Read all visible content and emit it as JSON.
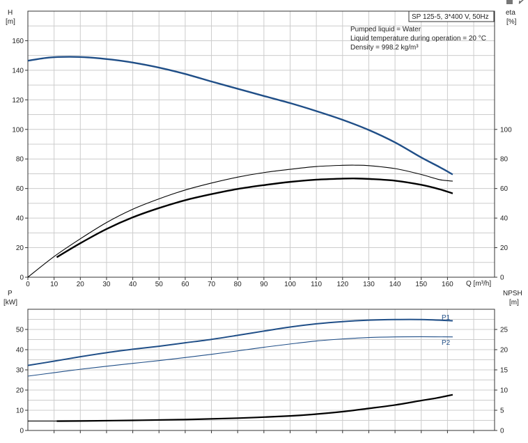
{
  "window_icons": [
    "square-icon",
    "expand-icon"
  ],
  "pump_box_label": "SP 125-5, 3*400 V, 50Hz",
  "info_lines": [
    "Pumped liquid = Water",
    "Liquid temperature during operation = 20 °C",
    "Density = 998.2 kg/m³"
  ],
  "colors": {
    "head": "#1f4e87",
    "eff": "#000000",
    "power": "#1f4e87",
    "npsh": "#000000",
    "grid": "#cccccc"
  },
  "chart_data": [
    {
      "type": "line",
      "x_label": "Q [m³/h]",
      "x_ticks": [
        "0",
        "10",
        "20",
        "30",
        "40",
        "50",
        "60",
        "70",
        "80",
        "90",
        "100",
        "110",
        "120",
        "130",
        "140",
        "150",
        "160"
      ],
      "xlim": [
        0,
        178
      ],
      "y_left_label": {
        "symbol": "H",
        "unit": "[m]"
      },
      "y_left_ticks": [
        "0",
        "20",
        "40",
        "60",
        "80",
        "100",
        "120",
        "140",
        "160"
      ],
      "ylim_left": [
        0,
        180
      ],
      "y_right_label": {
        "symbol": "eta",
        "unit": "[%]"
      },
      "y_right_ticks": [
        "0",
        "20",
        "40",
        "60",
        "80",
        "100"
      ],
      "ylim_right": [
        0,
        180
      ],
      "grid": true,
      "series": [
        {
          "role": "head",
          "x": [
            0,
            8,
            16,
            24,
            32,
            40,
            50,
            60,
            70,
            80,
            90,
            100,
            110,
            120,
            130,
            140,
            150,
            157,
            162
          ],
          "values": [
            146.5,
            148.6,
            149.1,
            148.6,
            147.2,
            145.2,
            141.8,
            137.5,
            132.4,
            127.5,
            122.6,
            117.8,
            112.4,
            106.5,
            99.6,
            91.2,
            81.0,
            74.5,
            69.5
          ]
        },
        {
          "role": "eta",
          "x": [
            0,
            10,
            20,
            30,
            40,
            50,
            60,
            70,
            80,
            90,
            100,
            110,
            120,
            125,
            130,
            140,
            150,
            157,
            162
          ],
          "values": [
            0,
            14,
            26,
            37,
            46,
            53,
            59,
            63.7,
            67.7,
            70.8,
            73,
            74.9,
            75.7,
            75.8,
            75.5,
            73.5,
            69.5,
            66,
            65
          ]
        },
        {
          "role": "eta_bold",
          "x": [
            11,
            20,
            30,
            40,
            50,
            60,
            70,
            80,
            90,
            100,
            110,
            120,
            125,
            130,
            140,
            150,
            157,
            162
          ],
          "values": [
            13.5,
            23,
            32.6,
            40.5,
            46.8,
            52.1,
            56.2,
            59.7,
            62.3,
            64.5,
            66,
            66.7,
            66.8,
            66.5,
            65.3,
            62.5,
            59.5,
            56.7
          ]
        }
      ]
    },
    {
      "type": "line",
      "x_label": "",
      "x_ticks": [],
      "xlim": [
        0,
        178
      ],
      "y_left_label": {
        "symbol": "P",
        "unit": "[kW]"
      },
      "y_left_ticks": [
        "0",
        "10",
        "20",
        "30",
        "40",
        "50"
      ],
      "ylim_left": [
        0,
        60
      ],
      "y_right_label": {
        "symbol": "NPSH",
        "unit": "[m]"
      },
      "y_right_ticks": [
        "0",
        "5",
        "10",
        "15",
        "20",
        "25"
      ],
      "ylim_right": [
        0,
        30
      ],
      "grid": true,
      "series": [
        {
          "name": "P1",
          "x": [
            0,
            10,
            20,
            30,
            40,
            50,
            60,
            70,
            80,
            90,
            100,
            110,
            120,
            130,
            140,
            150,
            162
          ],
          "values": [
            32.2,
            34.3,
            36.5,
            38.5,
            40.2,
            41.7,
            43.4,
            45.1,
            47.1,
            49.2,
            51.2,
            52.8,
            53.9,
            54.6,
            54.9,
            54.9,
            54.3
          ]
        },
        {
          "name": "P2",
          "x": [
            0,
            10,
            20,
            30,
            40,
            50,
            60,
            70,
            80,
            90,
            100,
            110,
            120,
            130,
            140,
            150,
            162
          ],
          "values": [
            26.9,
            28.6,
            30.3,
            31.8,
            33.2,
            34.6,
            36.1,
            37.7,
            39.4,
            41.2,
            42.8,
            44.3,
            45.3,
            46.0,
            46.3,
            46.4,
            46.3
          ]
        },
        {
          "role": "npsh",
          "x": [
            0,
            11,
            20,
            40,
            60,
            80,
            100,
            110,
            120,
            130,
            140,
            150,
            156,
            162
          ],
          "values": [
            2.3,
            2.3,
            2.35,
            2.5,
            2.7,
            3.05,
            3.6,
            4.05,
            4.65,
            5.45,
            6.3,
            7.4,
            8.05,
            8.85
          ]
        }
      ]
    }
  ]
}
